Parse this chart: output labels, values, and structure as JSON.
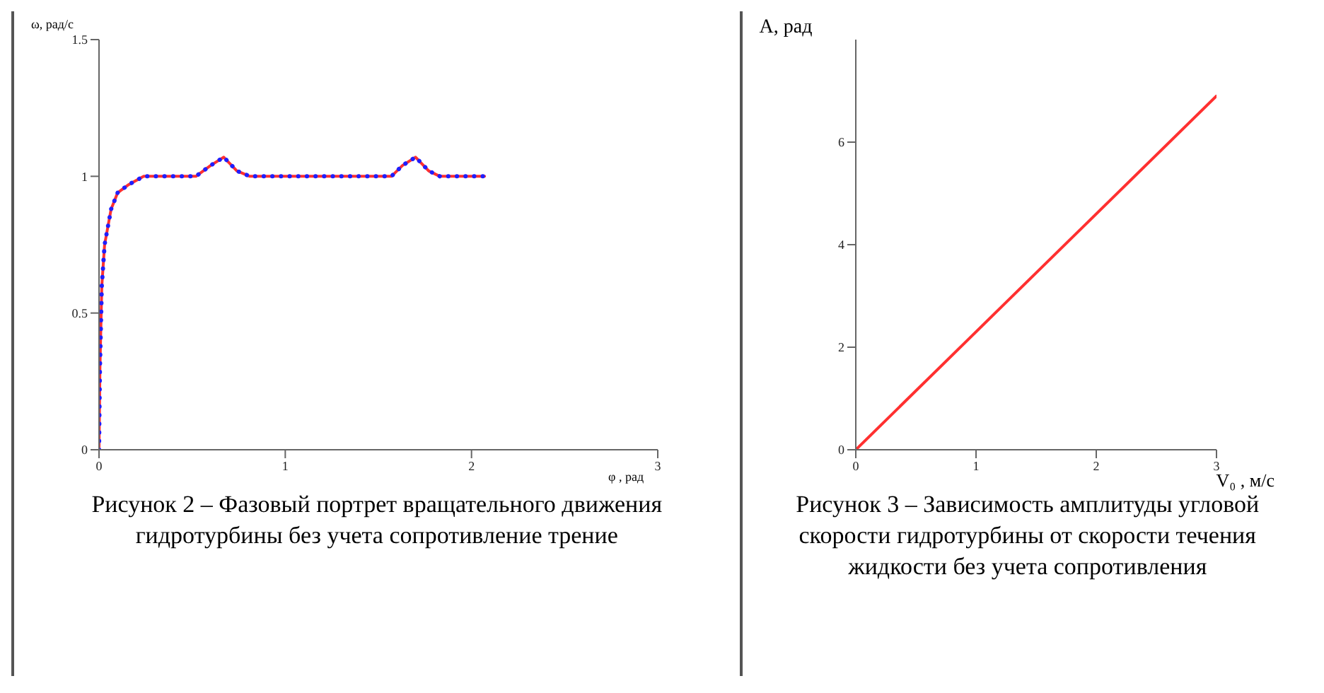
{
  "chart_data": [
    {
      "type": "line",
      "title": "Рисунок 2 – Фазовый портрет вращательного движения гидротурбины без учета сопротивление трение",
      "xlabel": "φ , рад",
      "ylabel": "ω, рад/с",
      "x": [
        0,
        0.005,
        0.015,
        0.03,
        0.065,
        0.1,
        0.16,
        0.24,
        0.35,
        0.52,
        0.6,
        0.67,
        0.74,
        0.81,
        1.0,
        1.2,
        1.4,
        1.57,
        1.63,
        1.7,
        1.77,
        1.83,
        1.95,
        2.07
      ],
      "series": [
        {
          "color": "#ff3030",
          "line_style": "solid",
          "values": [
            0,
            0.3,
            0.6,
            0.75,
            0.88,
            0.94,
            0.97,
            1.0,
            1.0,
            1.0,
            1.04,
            1.07,
            1.02,
            1.0,
            1.0,
            1.0,
            1.0,
            1.0,
            1.04,
            1.07,
            1.02,
            1.0,
            1.0,
            1.0
          ]
        },
        {
          "color": "#1f1fff",
          "line_style": "dotted",
          "values": [
            0,
            0.3,
            0.6,
            0.75,
            0.88,
            0.94,
            0.97,
            1.0,
            1.0,
            1.0,
            1.04,
            1.07,
            1.02,
            1.0,
            1.0,
            1.0,
            1.0,
            1.0,
            1.04,
            1.07,
            1.02,
            1.0,
            1.0,
            1.0
          ]
        }
      ],
      "xlim": [
        0,
        3
      ],
      "xticks": [
        0,
        1,
        2,
        3
      ],
      "ylim": [
        0,
        1.5
      ],
      "yticks": [
        0,
        0.5,
        1,
        1.5
      ],
      "grid": false,
      "legend": false,
      "marker": "none"
    },
    {
      "type": "line",
      "title": "Рисунок 3 – Зависимость амплитуды угловой скорости гидротурбины от скорости течения жидкости без учета сопротивления",
      "xlabel": "V₀ , м/с",
      "ylabel": "А, рад",
      "x": [
        0,
        3
      ],
      "series": [
        {
          "color": "#ff3030",
          "line_style": "solid",
          "values": [
            0,
            6.9
          ]
        }
      ],
      "xlim": [
        0,
        3
      ],
      "xticks": [
        0,
        1,
        2,
        3
      ],
      "ylim": [
        0,
        8
      ],
      "yticks": [
        0,
        2,
        4,
        6
      ],
      "grid": false,
      "legend": false,
      "marker": "none"
    }
  ]
}
